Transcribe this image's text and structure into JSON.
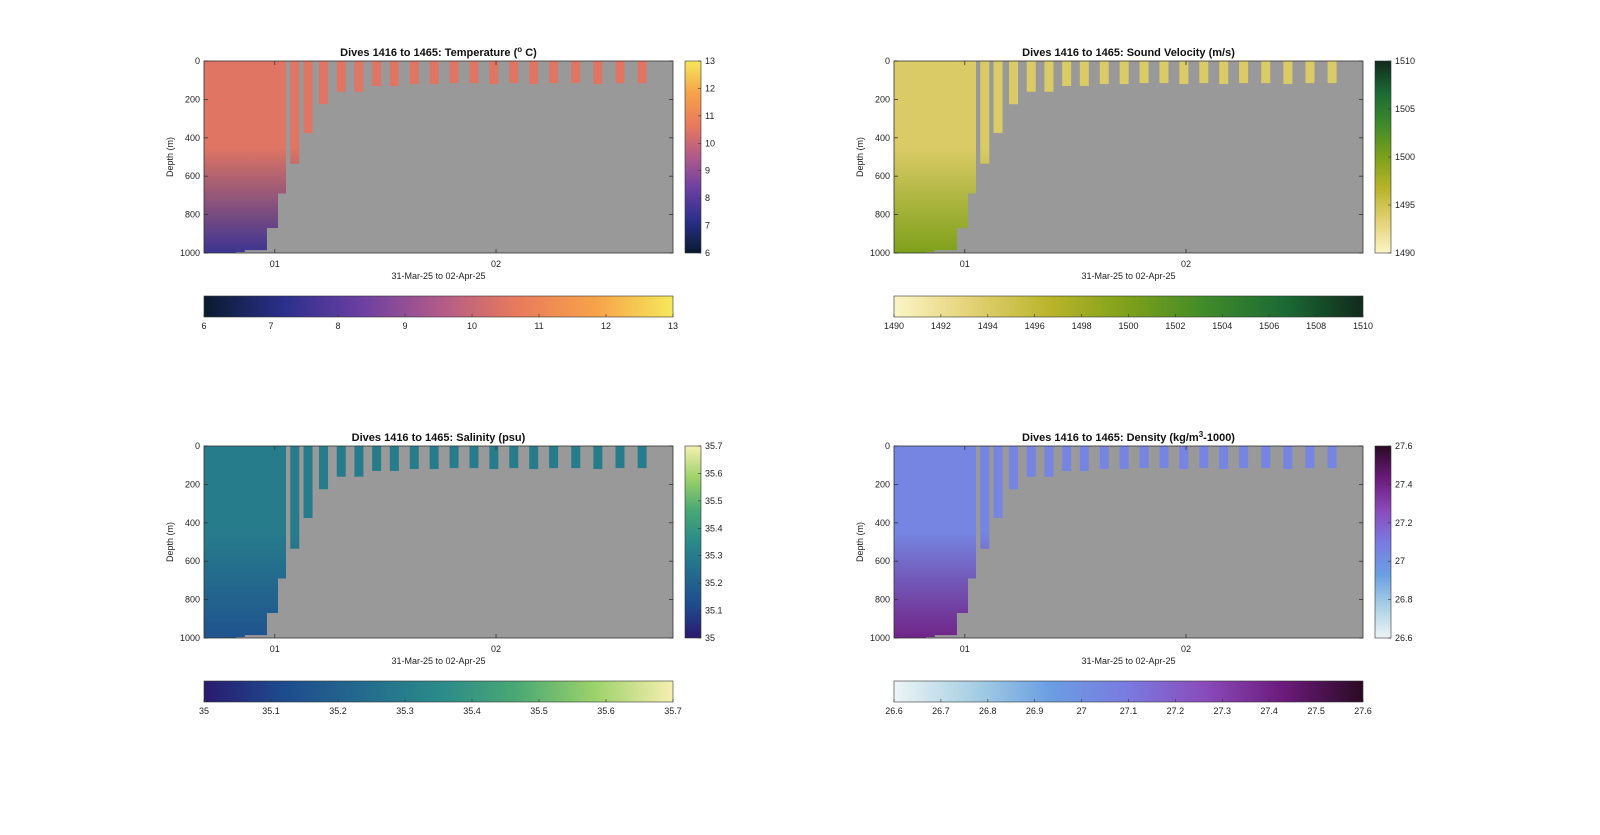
{
  "figure": {
    "xlabel": "31-Mar-25 to 02-Apr-25",
    "ylabel": "Depth (m)",
    "x_ticks": [
      "01",
      "02"
    ],
    "y_ticks": [
      "0",
      "200",
      "400",
      "600",
      "800",
      "1000"
    ],
    "background_color": "#999999"
  },
  "chart_data": [
    {
      "type": "heatmap",
      "title": "Dives 1416 to 1465: Temperature (",
      "title_sup": "o",
      "title_tail": " C)",
      "variable": "Temperature",
      "xlabel": "31-Mar-25 to 02-Apr-25",
      "ylabel": "Depth (m)",
      "ylim": [
        0,
        1000
      ],
      "xlim": [
        "31-Mar-25",
        "02-Apr-25"
      ],
      "x_ticks": [
        "01",
        "02"
      ],
      "y_ticks": [
        "0",
        "200",
        "400",
        "600",
        "800",
        "1000"
      ],
      "clim": [
        6,
        13
      ],
      "colorbar_ticks": [
        "6",
        "7",
        "8",
        "9",
        "10",
        "11",
        "12",
        "13"
      ],
      "colormap": [
        "#0a1a2e",
        "#2a2f8a",
        "#6a3fa3",
        "#b05a8a",
        "#e87a5c",
        "#f7a24a",
        "#f6e85a"
      ],
      "surface_value": 10.5,
      "deep_value": 7.5
    },
    {
      "type": "heatmap",
      "title": "Dives 1416 to 1465: Sound Velocity (m/s)",
      "title_sup": "",
      "title_tail": "",
      "variable": "Sound Velocity",
      "xlabel": "31-Mar-25 to 02-Apr-25",
      "ylabel": "Depth (m)",
      "ylim": [
        0,
        1000
      ],
      "xlim": [
        "31-Mar-25",
        "02-Apr-25"
      ],
      "x_ticks": [
        "01",
        "02"
      ],
      "y_ticks": [
        "0",
        "200",
        "400",
        "600",
        "800",
        "1000"
      ],
      "clim": [
        1490,
        1510
      ],
      "colorbar_ticks": [
        "1490",
        "1492",
        "1494",
        "1496",
        "1498",
        "1500",
        "1502",
        "1504",
        "1506",
        "1508",
        "1510"
      ],
      "colorbar_right_ticks": [
        "1490",
        "1495",
        "1500",
        "1505",
        "1510"
      ],
      "colormap": [
        "#fbf5c6",
        "#e3d175",
        "#b9b42a",
        "#7ea01a",
        "#3f8a2a",
        "#1b6a34",
        "#112a1c"
      ],
      "surface_value": 1494,
      "deep_value": 1500
    },
    {
      "type": "heatmap",
      "title": "Dives 1416 to 1465: Salinity (psu)",
      "title_sup": "",
      "title_tail": "",
      "variable": "Salinity",
      "xlabel": "31-Mar-25 to 02-Apr-25",
      "ylabel": "Depth (m)",
      "ylim": [
        0,
        1000
      ],
      "xlim": [
        "31-Mar-25",
        "02-Apr-25"
      ],
      "x_ticks": [
        "01",
        "02"
      ],
      "y_ticks": [
        "0",
        "200",
        "400",
        "600",
        "800",
        "1000"
      ],
      "clim": [
        35,
        35.7
      ],
      "colorbar_ticks": [
        "35",
        "35.1",
        "35.2",
        "35.3",
        "35.4",
        "35.5",
        "35.6",
        "35.7"
      ],
      "colormap": [
        "#2a1a6e",
        "#1e4a8e",
        "#236a8e",
        "#2a8a8a",
        "#4aa874",
        "#9cd26a",
        "#f6efb0"
      ],
      "surface_value": 35.3,
      "deep_value": 35.15
    },
    {
      "type": "heatmap",
      "title": "Dives 1416 to 1465: Density (kg/m",
      "title_sup": "3",
      "title_tail": "-1000)",
      "variable": "Density",
      "xlabel": "31-Mar-25 to 02-Apr-25",
      "ylabel": "Depth (m)",
      "ylim": [
        0,
        1000
      ],
      "xlim": [
        "31-Mar-25",
        "02-Apr-25"
      ],
      "x_ticks": [
        "01",
        "02"
      ],
      "y_ticks": [
        "0",
        "200",
        "400",
        "600",
        "800",
        "1000"
      ],
      "clim": [
        26.6,
        27.6
      ],
      "colorbar_ticks": [
        "26.6",
        "26.7",
        "26.8",
        "26.9",
        "27",
        "27.1",
        "27.2",
        "27.3",
        "27.4",
        "27.5",
        "27.6"
      ],
      "colorbar_right_ticks": [
        "26.6",
        "26.8",
        "27",
        "27.2",
        "27.4",
        "27.6"
      ],
      "colormap": [
        "#eef5f5",
        "#a8d0e4",
        "#6a9ee2",
        "#7a7ae0",
        "#8a4aba",
        "#6a1a7a",
        "#2a0a24"
      ],
      "surface_value": 27.05,
      "deep_value": 27.4
    }
  ],
  "dives": {
    "note_units": "day offset from 31-Mar-25 00:00 and max depth in metres",
    "time_days": [
      0.78,
      0.82,
      0.86,
      0.91,
      0.96,
      1.01,
      1.07,
      1.13,
      1.2,
      1.28,
      1.36,
      1.44,
      1.52,
      1.61,
      1.7,
      1.79,
      1.88,
      1.97,
      2.06,
      2.15,
      2.24,
      2.34,
      2.44,
      2.54,
      2.64
    ],
    "max_depth_m": [
      1000,
      995,
      985,
      985,
      870,
      690,
      535,
      375,
      225,
      160,
      160,
      130,
      130,
      120,
      120,
      115,
      115,
      120,
      115,
      120,
      115,
      115,
      120,
      115,
      115
    ]
  }
}
